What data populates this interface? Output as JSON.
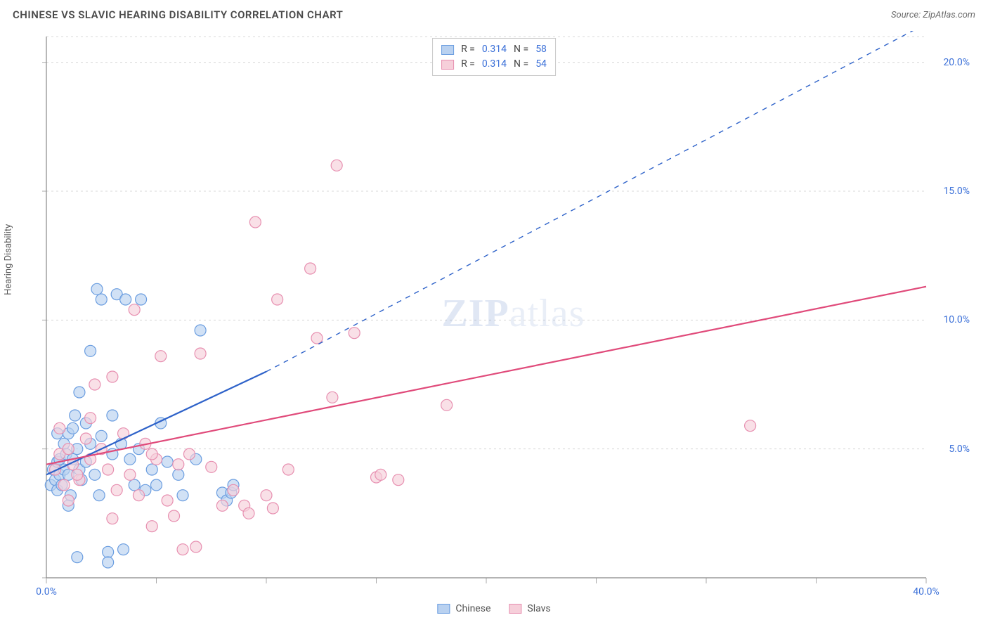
{
  "title": "CHINESE VS SLAVIC HEARING DISABILITY CORRELATION CHART",
  "source": "Source: ZipAtlas.com",
  "ylabel": "Hearing Disability",
  "watermark": {
    "part1": "ZIP",
    "part2": "atlas"
  },
  "chart": {
    "type": "scatter",
    "background_color": "#ffffff",
    "grid_color": "#d8d8d8",
    "axis_color": "#888888",
    "tick_color": "#aaaaaa",
    "label_color": "#3a6fd8",
    "xlim": [
      0,
      40
    ],
    "ylim": [
      0,
      21
    ],
    "ytick_step": 5,
    "xtick_step": 5,
    "y_labels": [
      5.0,
      10.0,
      15.0,
      20.0
    ],
    "x_labels": [
      0.0,
      40.0
    ],
    "marker_radius": 8,
    "marker_stroke_width": 1.2,
    "line_width": 2.2,
    "series": [
      {
        "name": "Chinese",
        "color_fill": "#b9d1f0",
        "color_stroke": "#6a9de0",
        "line_color": "#2e62c9",
        "R": "0.314",
        "N": "58",
        "trend": {
          "x1": 0,
          "y1": 4.0,
          "x2": 10,
          "y2": 8.0,
          "x2_dash": 40,
          "y2_dash": 21.5
        },
        "points": [
          [
            0.2,
            3.6
          ],
          [
            0.3,
            4.2
          ],
          [
            0.4,
            3.8
          ],
          [
            0.5,
            4.5
          ],
          [
            0.5,
            3.4
          ],
          [
            0.6,
            4.0
          ],
          [
            0.6,
            4.6
          ],
          [
            0.7,
            3.6
          ],
          [
            0.8,
            5.2
          ],
          [
            0.8,
            4.2
          ],
          [
            0.9,
            4.8
          ],
          [
            1.0,
            5.6
          ],
          [
            1.0,
            4.0
          ],
          [
            1.1,
            3.2
          ],
          [
            1.2,
            5.8
          ],
          [
            1.2,
            4.6
          ],
          [
            1.3,
            6.3
          ],
          [
            1.4,
            5.0
          ],
          [
            1.5,
            4.2
          ],
          [
            1.5,
            7.2
          ],
          [
            1.6,
            3.8
          ],
          [
            1.8,
            6.0
          ],
          [
            1.8,
            4.5
          ],
          [
            2.0,
            5.2
          ],
          [
            2.0,
            8.8
          ],
          [
            2.2,
            4.0
          ],
          [
            2.3,
            11.2
          ],
          [
            2.4,
            3.2
          ],
          [
            2.5,
            5.5
          ],
          [
            2.5,
            10.8
          ],
          [
            2.8,
            1.0
          ],
          [
            2.8,
            0.6
          ],
          [
            3.0,
            6.3
          ],
          [
            3.0,
            4.8
          ],
          [
            3.2,
            11.0
          ],
          [
            3.4,
            5.2
          ],
          [
            3.5,
            1.1
          ],
          [
            3.6,
            10.8
          ],
          [
            3.8,
            4.6
          ],
          [
            4.0,
            3.6
          ],
          [
            4.2,
            5.0
          ],
          [
            4.3,
            10.8
          ],
          [
            4.5,
            3.4
          ],
          [
            4.8,
            4.2
          ],
          [
            5.0,
            3.6
          ],
          [
            5.2,
            6.0
          ],
          [
            5.5,
            4.5
          ],
          [
            6.0,
            4.0
          ],
          [
            6.2,
            3.2
          ],
          [
            6.8,
            4.6
          ],
          [
            7.0,
            9.6
          ],
          [
            8.0,
            3.3
          ],
          [
            8.2,
            3.0
          ],
          [
            8.4,
            3.3
          ],
          [
            8.5,
            3.6
          ],
          [
            1.0,
            2.8
          ],
          [
            1.4,
            0.8
          ],
          [
            0.5,
            5.6
          ]
        ]
      },
      {
        "name": "Slavs",
        "color_fill": "#f6cfda",
        "color_stroke": "#e78fb0",
        "line_color": "#e04a7a",
        "R": "0.314",
        "N": "54",
        "trend": {
          "x1": 0,
          "y1": 4.4,
          "x2": 40,
          "y2": 11.3
        },
        "points": [
          [
            0.4,
            4.2
          ],
          [
            0.6,
            4.8
          ],
          [
            0.8,
            3.6
          ],
          [
            1.0,
            5.0
          ],
          [
            1.2,
            4.4
          ],
          [
            1.5,
            3.8
          ],
          [
            1.8,
            5.4
          ],
          [
            2.0,
            4.6
          ],
          [
            2.2,
            7.5
          ],
          [
            2.5,
            5.0
          ],
          [
            2.8,
            4.2
          ],
          [
            3.0,
            7.8
          ],
          [
            3.2,
            3.4
          ],
          [
            3.5,
            5.6
          ],
          [
            3.8,
            4.0
          ],
          [
            4.0,
            10.4
          ],
          [
            4.2,
            3.2
          ],
          [
            4.5,
            5.2
          ],
          [
            4.8,
            2.0
          ],
          [
            5.0,
            4.6
          ],
          [
            5.2,
            8.6
          ],
          [
            5.5,
            3.0
          ],
          [
            5.8,
            2.4
          ],
          [
            6.0,
            4.4
          ],
          [
            6.2,
            1.1
          ],
          [
            6.5,
            4.8
          ],
          [
            6.8,
            1.2
          ],
          [
            7.0,
            8.7
          ],
          [
            7.5,
            4.3
          ],
          [
            8.0,
            2.8
          ],
          [
            8.5,
            3.4
          ],
          [
            9.0,
            2.8
          ],
          [
            9.2,
            2.5
          ],
          [
            9.5,
            13.8
          ],
          [
            10.0,
            3.2
          ],
          [
            10.3,
            2.7
          ],
          [
            10.5,
            10.8
          ],
          [
            11.0,
            4.2
          ],
          [
            12.0,
            12.0
          ],
          [
            12.3,
            9.3
          ],
          [
            13.0,
            7.0
          ],
          [
            13.2,
            16.0
          ],
          [
            14.0,
            9.5
          ],
          [
            15.0,
            3.9
          ],
          [
            15.2,
            4.0
          ],
          [
            16.0,
            3.8
          ],
          [
            18.2,
            6.7
          ],
          [
            32.0,
            5.9
          ],
          [
            4.8,
            4.8
          ],
          [
            3.0,
            2.3
          ],
          [
            1.0,
            3.0
          ],
          [
            0.6,
            5.8
          ],
          [
            2.0,
            6.2
          ],
          [
            1.4,
            4.0
          ]
        ]
      }
    ]
  },
  "legend_top": [
    {
      "swatch_fill": "#b9d1f0",
      "swatch_stroke": "#6a9de0",
      "r_label": "R =",
      "r_val": "0.314",
      "n_label": "N =",
      "n_val": "58"
    },
    {
      "swatch_fill": "#f6cfda",
      "swatch_stroke": "#e78fb0",
      "r_label": "R =",
      "r_val": "0.314",
      "n_label": "N =",
      "n_val": "54"
    }
  ],
  "legend_bottom": [
    {
      "swatch_fill": "#b9d1f0",
      "swatch_stroke": "#6a9de0",
      "label": "Chinese"
    },
    {
      "swatch_fill": "#f6cfda",
      "swatch_stroke": "#e78fb0",
      "label": "Slavs"
    }
  ]
}
